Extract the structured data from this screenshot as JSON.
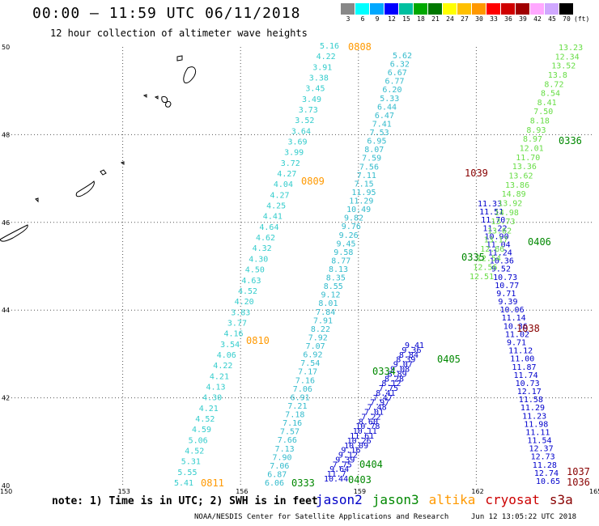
{
  "header": {
    "title": "00:00 – 11:59 UTC 06/11/2018",
    "subtitle": "12 hour collection of altimeter wave heights"
  },
  "color_scale": {
    "labels": [
      "3",
      "6",
      "9",
      "12",
      "15",
      "18",
      "21",
      "24",
      "27",
      "30",
      "33",
      "36",
      "39",
      "42",
      "45",
      "70",
      "(ft)"
    ],
    "colors": [
      "#888888",
      "#00ffff",
      "#00a8ff",
      "#0000ff",
      "#00c0a0",
      "#00a800",
      "#007800",
      "#ffff00",
      "#ffc000",
      "#ff9800",
      "#ff0000",
      "#d00000",
      "#a00000",
      "#ffa8ff",
      "#d0a8ff",
      "#000000"
    ]
  },
  "map": {
    "lon_ticks": [
      "150",
      "153",
      "156",
      "159",
      "162",
      "165"
    ],
    "lat_ticks": [
      "50",
      "48",
      "46",
      "44",
      "42",
      "40"
    ],
    "lon_range": [
      150,
      165
    ],
    "lat_range": [
      40,
      50
    ],
    "grid": true,
    "projection_note": "",
    "land": [
      {
        "name": "hokkaido-fragment-1"
      },
      {
        "name": "kuril-islands"
      }
    ]
  },
  "satellites": [
    {
      "name": "jason2",
      "color": "#0000c8"
    },
    {
      "name": "jason3",
      "color": "#008800"
    },
    {
      "name": "altika",
      "color": "#ff9900"
    },
    {
      "name": "cryosat",
      "color": "#cc0000"
    },
    {
      "name": "s3a",
      "color": "#880000"
    }
  ],
  "passes": [
    {
      "id": "0808",
      "sat": "altika",
      "color": "#ff9900"
    },
    {
      "id": "0809",
      "sat": "altika",
      "color": "#ff9900"
    },
    {
      "id": "0810",
      "sat": "altika",
      "color": "#ff9900"
    },
    {
      "id": "0811",
      "sat": "altika",
      "color": "#ff9900"
    },
    {
      "id": "1039",
      "sat": "s3a",
      "color": "#880000"
    },
    {
      "id": "1038",
      "sat": "s3a",
      "color": "#880000"
    },
    {
      "id": "1037",
      "sat": "s3a",
      "color": "#880000"
    },
    {
      "id": "1036",
      "sat": "s3a",
      "color": "#880000"
    },
    {
      "id": "0336",
      "sat": "jason3",
      "color": "#008800"
    },
    {
      "id": "0406",
      "sat": "jason3",
      "color": "#008800"
    },
    {
      "id": "0335",
      "sat": "jason3",
      "color": "#008800"
    },
    {
      "id": "0405",
      "sat": "jason3",
      "color": "#008800"
    },
    {
      "id": "0334",
      "sat": "jason3",
      "color": "#008800"
    },
    {
      "id": "0404",
      "sat": "jason3",
      "color": "#008800"
    },
    {
      "id": "0403",
      "sat": "jason3",
      "color": "#008800"
    },
    {
      "id": "0333",
      "sat": "jason3",
      "color": "#008800"
    }
  ],
  "observations": {
    "altika_track": [
      "5.16",
      "4.22",
      "3.91",
      "3.38",
      "3.45",
      "3.49",
      "3.73",
      "3.52",
      "3.64",
      "3.69",
      "3.99",
      "3.72",
      "4.27",
      "4.04",
      "4.27",
      "4.25",
      "4.41",
      "4.64",
      "4.62",
      "4.32",
      "4.30",
      "4.50",
      "4.63",
      "4.52",
      "4.20",
      "3.83",
      "3.77",
      "4.16",
      "3.54",
      "4.06",
      "4.22",
      "4.21",
      "4.13",
      "4.30",
      "4.21",
      "4.52",
      "4.59",
      "5.06",
      "4.52",
      "5.31",
      "5.55",
      "5.41"
    ],
    "track_b": [
      "5.62",
      "6.32",
      "6.67",
      "6.77",
      "6.20",
      "5.33",
      "6.44",
      "6.47",
      "7.41",
      "7.53",
      "6.95",
      "8.07",
      "7.59",
      "7.56",
      "7.11",
      "7.15",
      "11.95",
      "11.29",
      "10.49",
      "9.82",
      "9.76",
      "9.26",
      "9.45",
      "9.58",
      "8.77",
      "8.13",
      "8.35",
      "8.55",
      "9.12",
      "8.01",
      "7.84",
      "7.91",
      "8.22",
      "7.92",
      "7.07",
      "6.92",
      "7.54",
      "7.17",
      "7.16",
      "7.06",
      "6.91",
      "7.21",
      "7.18",
      "7.16",
      "7.57",
      "7.66",
      "7.13",
      "7.90",
      "7.06",
      "6.87",
      "6.06"
    ],
    "track_c": [
      "11.33",
      "11.51",
      "11.70",
      "11.22",
      "10.90",
      "11.04",
      "11.24",
      "10.36",
      "9.52",
      "10.73",
      "10.77",
      "9.71",
      "9.39",
      "10.06",
      "11.14",
      "10.36",
      "11.02",
      "9.71",
      "11.12",
      "11.00",
      "11.87",
      "11.74",
      "10.73",
      "12.17",
      "11.58",
      "11.29",
      "11.23",
      "11.98",
      "11.11",
      "11.54",
      "12.37",
      "12.73",
      "11.28",
      "12.74",
      "10.65"
    ],
    "track_d": [
      "13.23",
      "12.34",
      "13.52",
      "13.8",
      "8.72",
      "8.54",
      "8.41",
      "7.50",
      "8.18",
      "8.93",
      "8.97",
      "12.01",
      "11.70",
      "13.36",
      "13.62",
      "13.86",
      "14.89",
      "13.92",
      "14.98",
      "13.73",
      "13.62",
      "13.17",
      "12.66",
      "12.54",
      "12.56",
      "12.51"
    ],
    "track_e": [
      "9.41",
      "9.36",
      "8.84",
      "8.39",
      "9.07",
      "9.08",
      "8.89",
      "8.28",
      "8.12",
      "7.75",
      "8.41",
      "7.47",
      "7.97",
      "7.48",
      "7.01",
      "7.22",
      "8.60",
      "10.78",
      "10.11",
      "11.61",
      "10.26",
      "10.09",
      "9.16",
      "9.12",
      "9.39",
      "7.75",
      "9.64",
      "11.7",
      "10.44"
    ]
  },
  "footer": {
    "note": "note: 1) Time is in UTC; 2) SWH is in feet",
    "credit": "NOAA/NESDIS Center for Satellite Applications and Research",
    "timestamp": "Jun 12 13:05:22 UTC 2018"
  }
}
